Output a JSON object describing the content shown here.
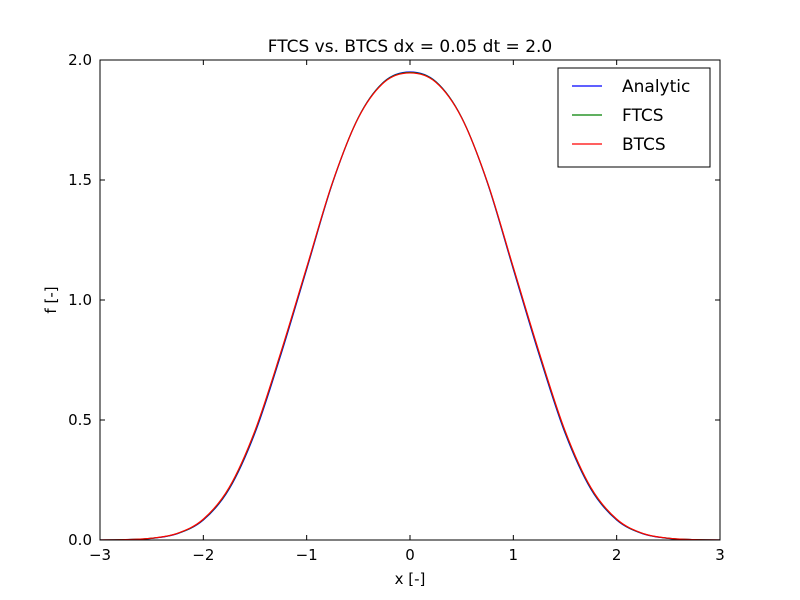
{
  "chart_data": {
    "type": "line",
    "title": "FTCS vs. BTCS dx = 0.05 dt = 2.0",
    "xlabel": "x [-]",
    "ylabel": "f [-]",
    "xlim": [
      -3,
      3
    ],
    "ylim": [
      0,
      2
    ],
    "xticks": [
      -3,
      -2,
      -1,
      0,
      1,
      2,
      3
    ],
    "xtick_labels": [
      "−3",
      "−2",
      "−1",
      "0",
      "1",
      "2",
      "3"
    ],
    "yticks": [
      0,
      0.5,
      1,
      1.5,
      2
    ],
    "ytick_labels": [
      "0.0",
      "0.5",
      "1.0",
      "1.5",
      "2.0"
    ],
    "grid": false,
    "legend_position": "top-right",
    "x": [
      -3.0,
      -2.75,
      -2.5,
      -2.25,
      -2.0,
      -1.75,
      -1.5,
      -1.25,
      -1.0,
      -0.75,
      -0.5,
      -0.25,
      0.0,
      0.25,
      0.5,
      0.75,
      1.0,
      1.25,
      1.5,
      1.75,
      2.0,
      2.25,
      2.5,
      2.75,
      3.0
    ],
    "series": [
      {
        "name": "Analytic",
        "color": "#0000ff",
        "values": [
          0.0002,
          0.0015,
          0.0069,
          0.0264,
          0.083,
          0.212,
          0.446,
          0.771,
          1.128,
          1.487,
          1.76,
          1.91,
          1.95,
          1.91,
          1.76,
          1.487,
          1.128,
          0.771,
          0.446,
          0.212,
          0.083,
          0.0264,
          0.0069,
          0.0015,
          0.0002
        ]
      },
      {
        "name": "FTCS",
        "color": "#008000",
        "values": [
          0.0002,
          0.0016,
          0.0072,
          0.0272,
          0.085,
          0.216,
          0.452,
          0.778,
          1.133,
          1.489,
          1.76,
          1.909,
          1.948,
          1.909,
          1.76,
          1.489,
          1.133,
          0.778,
          0.452,
          0.216,
          0.085,
          0.0272,
          0.0072,
          0.0016,
          0.0002
        ]
      },
      {
        "name": "BTCS",
        "color": "#ff0000",
        "values": [
          0.0002,
          0.0017,
          0.0075,
          0.028,
          0.087,
          0.219,
          0.456,
          0.782,
          1.136,
          1.49,
          1.759,
          1.907,
          1.946,
          1.907,
          1.759,
          1.49,
          1.136,
          0.782,
          0.456,
          0.219,
          0.087,
          0.028,
          0.0075,
          0.0017,
          0.0002
        ]
      }
    ]
  }
}
